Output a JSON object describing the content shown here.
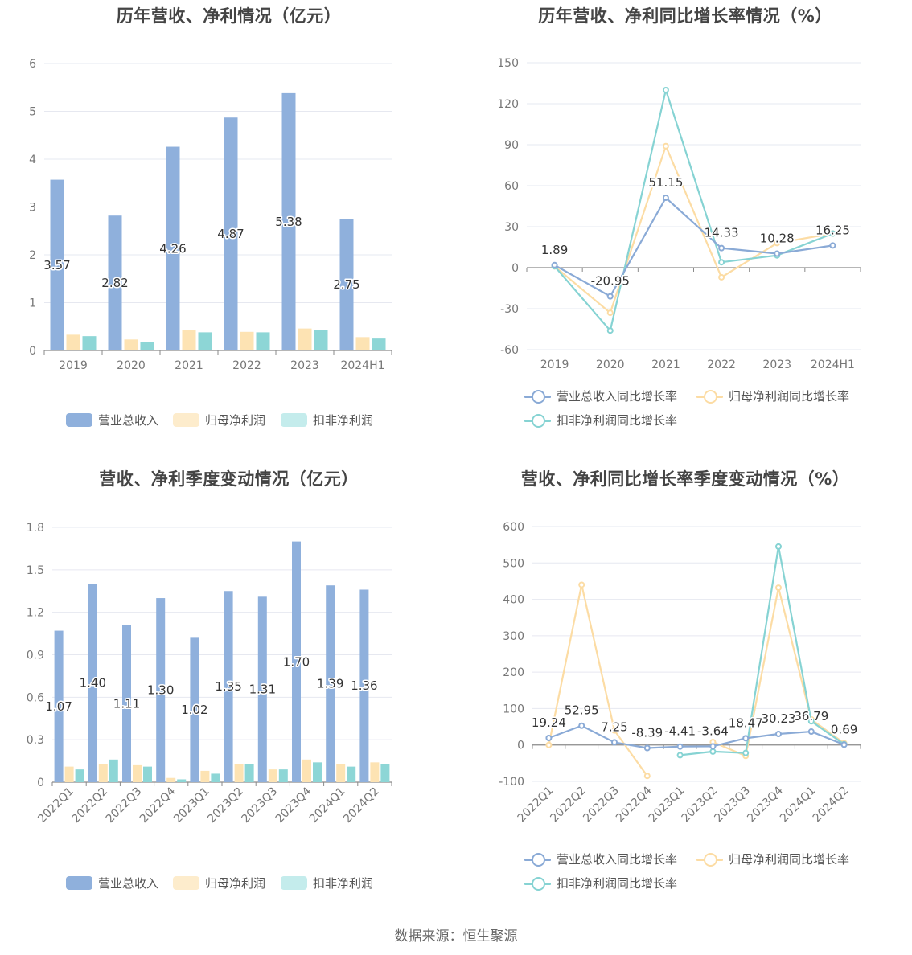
{
  "source_text": "数据来源：恒生聚源",
  "colors": {
    "revenue": "#8fb0dc",
    "net_profit": "#fde3b3",
    "deducted_profit": "#8dd6d6",
    "revenue_line": "#8aaad6",
    "net_line": "#fcdca4",
    "ded_line": "#86d3d3",
    "legend_net": "#fdeccc",
    "legend_ded": "#c4ecec"
  },
  "chart_data": [
    {
      "id": "annual-amount",
      "type": "bar",
      "title": "历年营收、净利情况（亿元）",
      "categories": [
        "2019",
        "2020",
        "2021",
        "2022",
        "2023",
        "2024H1"
      ],
      "ylim": [
        0,
        6
      ],
      "yticks": [
        "0",
        "1",
        "2",
        "3",
        "4",
        "5",
        "6"
      ],
      "series": [
        {
          "name": "营业总收入",
          "values": [
            3.57,
            2.82,
            4.26,
            4.87,
            5.38,
            2.75
          ],
          "labels": [
            "3.57",
            "2.82",
            "4.26",
            "4.87",
            "5.38",
            "2.75"
          ]
        },
        {
          "name": "归母净利润",
          "values": [
            0.33,
            0.23,
            0.42,
            0.39,
            0.46,
            0.28
          ]
        },
        {
          "name": "扣非净利润",
          "values": [
            0.3,
            0.17,
            0.38,
            0.38,
            0.43,
            0.25
          ]
        }
      ],
      "legend_position": "bottom",
      "grid": true
    },
    {
      "id": "annual-growth",
      "type": "line",
      "title": "历年营收、净利同比增长率情况（%）",
      "categories": [
        "2019",
        "2020",
        "2021",
        "2022",
        "2023",
        "2024H1"
      ],
      "ylim": [
        -60,
        150
      ],
      "yticks": [
        "-60",
        "-30",
        "0",
        "30",
        "60",
        "90",
        "120",
        "150"
      ],
      "series": [
        {
          "name": "营业总收入同比增长率",
          "values": [
            1.89,
            -20.95,
            51.15,
            14.33,
            10.28,
            16.25
          ],
          "labels": [
            "1.89",
            "-20.95",
            "51.15",
            "14.33",
            "10.28",
            "16.25"
          ]
        },
        {
          "name": "归母净利润同比增长率",
          "values": [
            1,
            -33,
            89,
            -7,
            18,
            25
          ]
        },
        {
          "name": "扣非净利润同比增长率",
          "values": [
            1,
            -46,
            130,
            4,
            9,
            25
          ]
        }
      ],
      "legend_position": "bottom",
      "grid": true
    },
    {
      "id": "quarterly-amount",
      "type": "bar",
      "title": "营收、净利季度变动情况（亿元）",
      "categories": [
        "2022Q1",
        "2022Q2",
        "2022Q3",
        "2022Q4",
        "2023Q1",
        "2023Q2",
        "2023Q3",
        "2023Q4",
        "2024Q1",
        "2024Q2"
      ],
      "ylim": [
        0,
        1.8
      ],
      "yticks": [
        "0",
        "0.3",
        "0.6",
        "0.9",
        "1.2",
        "1.5",
        "1.8"
      ],
      "series": [
        {
          "name": "营业总收入",
          "values": [
            1.07,
            1.4,
            1.11,
            1.3,
            1.02,
            1.35,
            1.31,
            1.7,
            1.39,
            1.36
          ],
          "labels": [
            "1.07",
            "1.40",
            "1.11",
            "1.30",
            "1.02",
            "1.35",
            "1.31",
            "1.70",
            "1.39",
            "1.36"
          ]
        },
        {
          "name": "归母净利润",
          "values": [
            0.11,
            0.13,
            0.12,
            0.03,
            0.08,
            0.13,
            0.09,
            0.16,
            0.13,
            0.14
          ]
        },
        {
          "name": "扣非净利润",
          "values": [
            0.09,
            0.16,
            0.11,
            0.02,
            0.06,
            0.13,
            0.09,
            0.14,
            0.11,
            0.13
          ]
        }
      ],
      "legend_position": "bottom",
      "grid": true
    },
    {
      "id": "quarterly-growth",
      "type": "line",
      "title": "营收、净利同比增长率季度变动情况（%）",
      "categories": [
        "2022Q1",
        "2022Q2",
        "2022Q3",
        "2022Q4",
        "2023Q1",
        "2023Q2",
        "2023Q3",
        "2023Q4",
        "2024Q1",
        "2024Q2"
      ],
      "ylim": [
        -100,
        600
      ],
      "yticks": [
        "-100",
        "0",
        "100",
        "200",
        "300",
        "400",
        "500",
        "600"
      ],
      "series": [
        {
          "name": "营业总收入同比增长率",
          "values": [
            19.24,
            52.95,
            7.25,
            -8.39,
            -4.41,
            -3.64,
            18.47,
            30.23,
            36.79,
            0.69
          ],
          "labels": [
            "19.24",
            "52.95",
            "7.25",
            "-8.39",
            "-4.41",
            "-3.64",
            "18.47",
            "30.23",
            "36.79",
            "0.69"
          ]
        },
        {
          "name": "归母净利润同比增长率",
          "values": [
            0,
            440,
            40,
            -85,
            null,
            8,
            -30,
            432,
            70,
            5
          ]
        },
        {
          "name": "扣非净利润同比增长率",
          "values": [
            null,
            null,
            null,
            null,
            -28,
            -18,
            -22,
            545,
            65,
            2
          ]
        }
      ],
      "legend_position": "bottom",
      "grid": true
    }
  ]
}
